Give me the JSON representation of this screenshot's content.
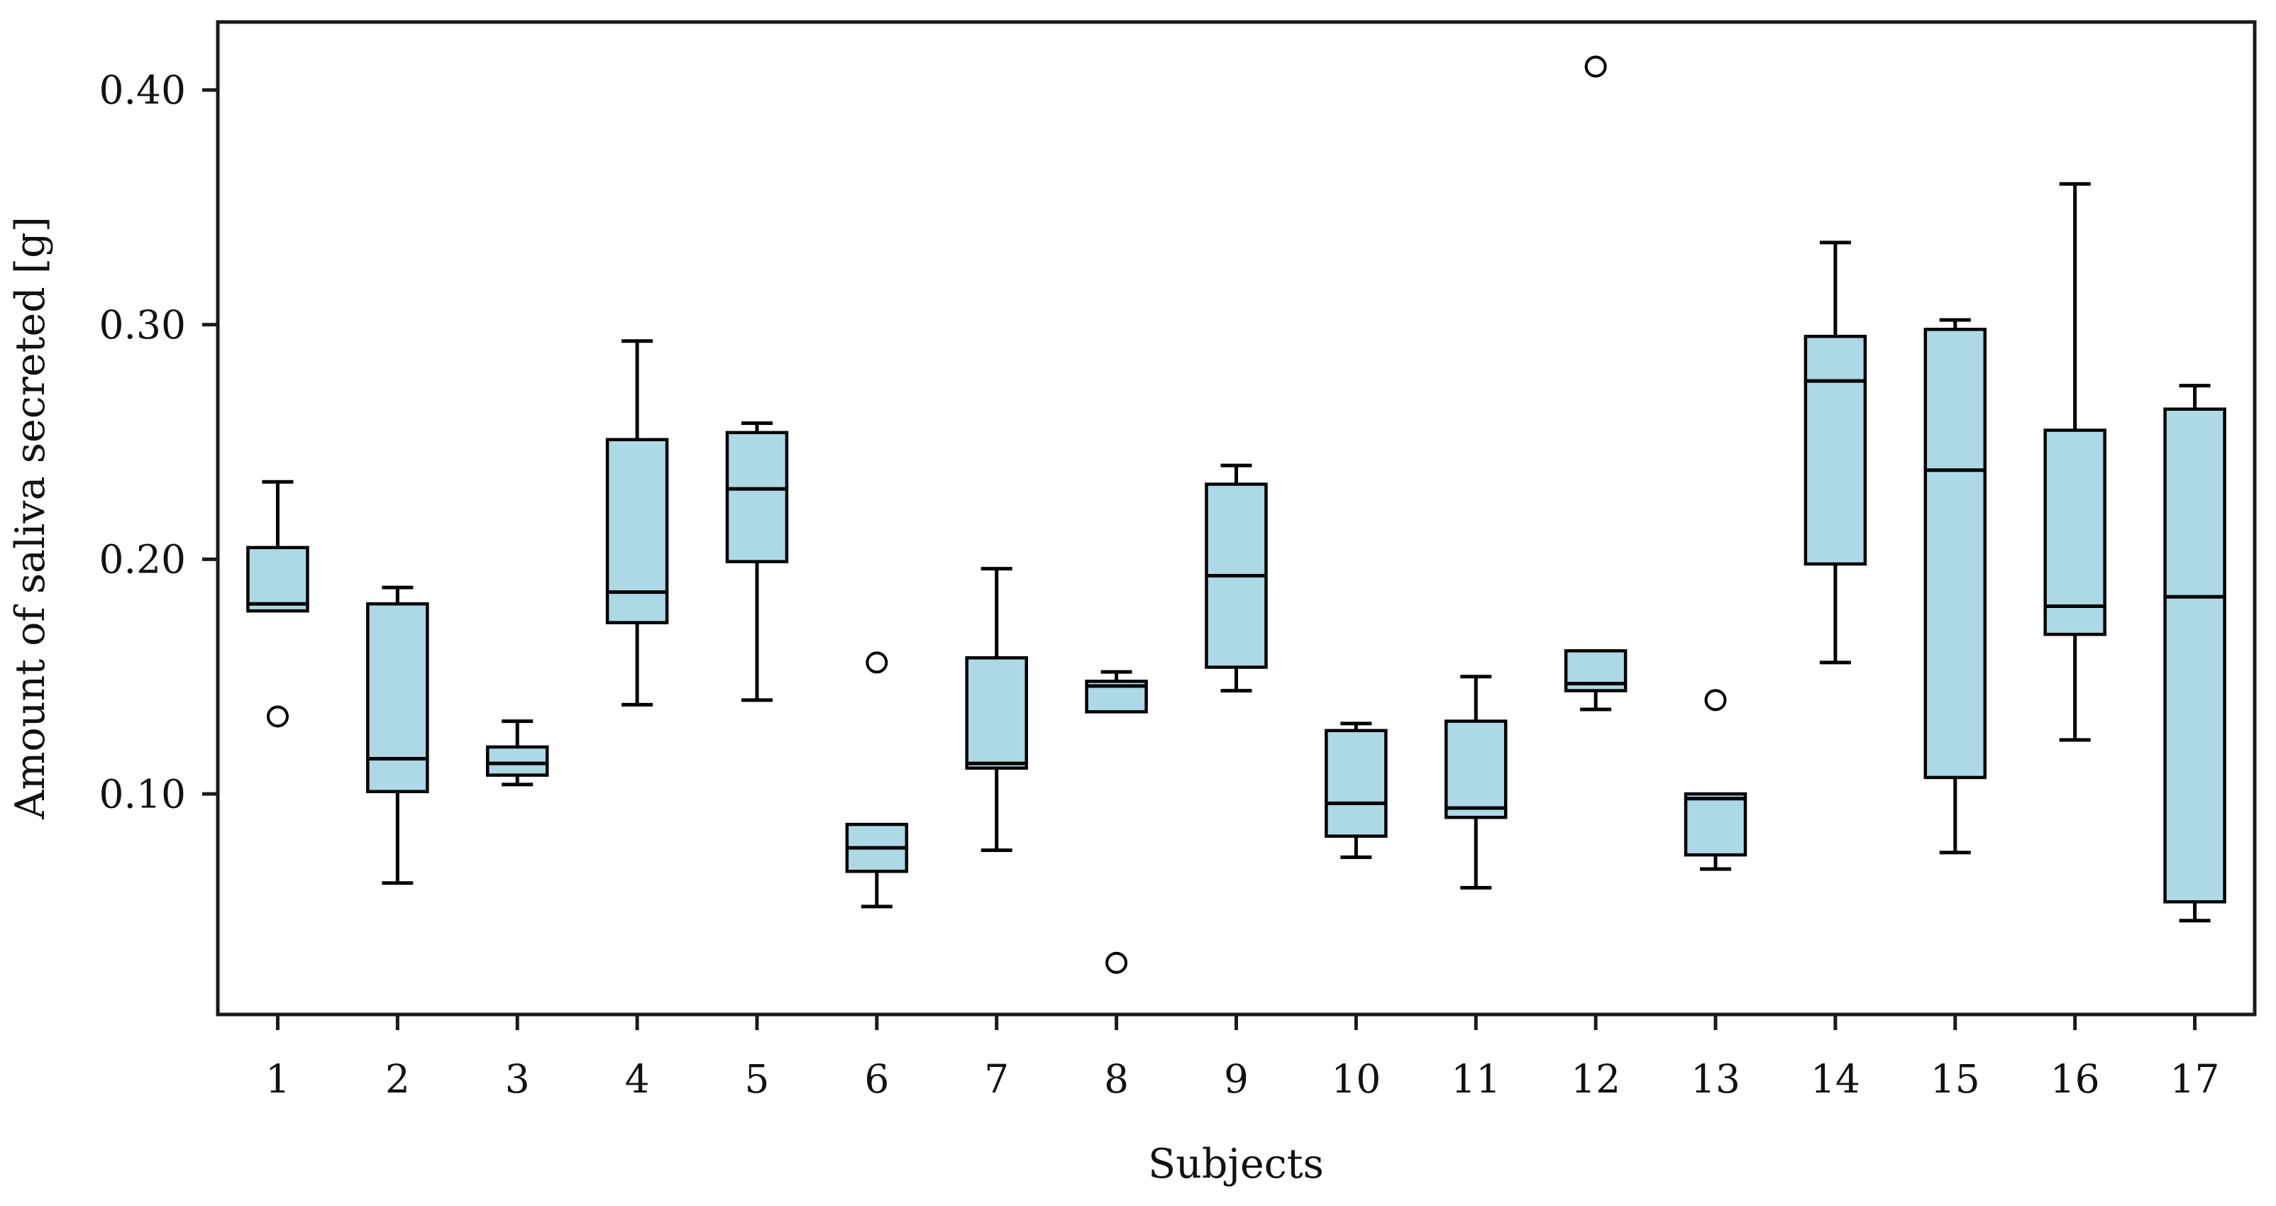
{
  "figure": {
    "background": "#ffffff",
    "axis_color": "#1a1a1a",
    "text_color": "#111111"
  },
  "chart_data": {
    "type": "boxplot",
    "title": "",
    "xlabel": "Subjects",
    "ylabel": "Amount of saliva secreted [g]",
    "categories": [
      "1",
      "2",
      "3",
      "4",
      "5",
      "6",
      "7",
      "8",
      "9",
      "10",
      "11",
      "12",
      "13",
      "14",
      "15",
      "16",
      "17"
    ],
    "ylim": [
      0.006,
      0.429
    ],
    "yticks": [
      0.1,
      0.2,
      0.3,
      0.4
    ],
    "ytick_labels": [
      "0.10",
      "0.20",
      "0.30",
      "0.40"
    ],
    "grid": false,
    "legend": null,
    "box_fill": "#ADD8E6",
    "box_edge": "#000000",
    "outlier_fill": "#ffffff",
    "series": [
      {
        "label": "1",
        "whislo": 0.178,
        "q1": 0.178,
        "med": 0.181,
        "q3": 0.205,
        "whishi": 0.233,
        "outliers": [
          0.133
        ]
      },
      {
        "label": "2",
        "whislo": 0.062,
        "q1": 0.101,
        "med": 0.115,
        "q3": 0.181,
        "whishi": 0.188,
        "outliers": []
      },
      {
        "label": "3",
        "whislo": 0.104,
        "q1": 0.108,
        "med": 0.113,
        "q3": 0.12,
        "whishi": 0.131,
        "outliers": []
      },
      {
        "label": "4",
        "whislo": 0.138,
        "q1": 0.173,
        "med": 0.186,
        "q3": 0.251,
        "whishi": 0.293,
        "outliers": []
      },
      {
        "label": "5",
        "whislo": 0.14,
        "q1": 0.199,
        "med": 0.23,
        "q3": 0.254,
        "whishi": 0.258,
        "outliers": []
      },
      {
        "label": "6",
        "whislo": 0.052,
        "q1": 0.067,
        "med": 0.077,
        "q3": 0.087,
        "whishi": 0.087,
        "outliers": [
          0.156
        ]
      },
      {
        "label": "7",
        "whislo": 0.076,
        "q1": 0.111,
        "med": 0.113,
        "q3": 0.158,
        "whishi": 0.196,
        "outliers": []
      },
      {
        "label": "8",
        "whislo": 0.135,
        "q1": 0.135,
        "med": 0.146,
        "q3": 0.148,
        "whishi": 0.152,
        "outliers": [
          0.028
        ]
      },
      {
        "label": "9",
        "whislo": 0.144,
        "q1": 0.154,
        "med": 0.193,
        "q3": 0.232,
        "whishi": 0.24,
        "outliers": []
      },
      {
        "label": "10",
        "whislo": 0.073,
        "q1": 0.082,
        "med": 0.096,
        "q3": 0.127,
        "whishi": 0.13,
        "outliers": []
      },
      {
        "label": "11",
        "whislo": 0.06,
        "q1": 0.09,
        "med": 0.094,
        "q3": 0.131,
        "whishi": 0.15,
        "outliers": []
      },
      {
        "label": "12",
        "whislo": 0.136,
        "q1": 0.144,
        "med": 0.147,
        "q3": 0.161,
        "whishi": 0.161,
        "outliers": [
          0.41
        ]
      },
      {
        "label": "13",
        "whislo": 0.068,
        "q1": 0.074,
        "med": 0.098,
        "q3": 0.1,
        "whishi": 0.1,
        "outliers": [
          0.14
        ]
      },
      {
        "label": "14",
        "whislo": 0.156,
        "q1": 0.198,
        "med": 0.276,
        "q3": 0.295,
        "whishi": 0.335,
        "outliers": []
      },
      {
        "label": "15",
        "whislo": 0.075,
        "q1": 0.107,
        "med": 0.238,
        "q3": 0.298,
        "whishi": 0.302,
        "outliers": []
      },
      {
        "label": "16",
        "whislo": 0.123,
        "q1": 0.168,
        "med": 0.18,
        "q3": 0.255,
        "whishi": 0.36,
        "outliers": []
      },
      {
        "label": "17",
        "whislo": 0.046,
        "q1": 0.054,
        "med": 0.184,
        "q3": 0.264,
        "whishi": 0.274,
        "outliers": []
      }
    ]
  }
}
